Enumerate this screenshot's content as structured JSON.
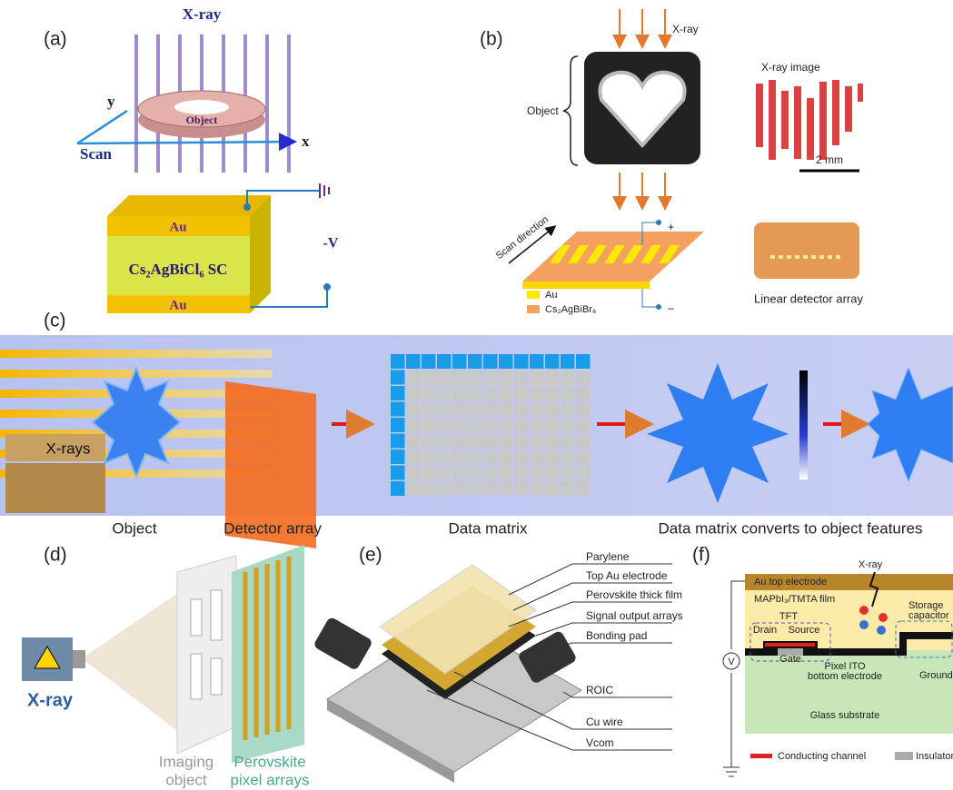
{
  "panels": {
    "a": {
      "label": "(a)",
      "xray": "X-ray",
      "axis_y": "y",
      "object": "Object",
      "scan": "Scan",
      "axis_x": "x",
      "top_electrode": "Au",
      "crystal": "Cs₂AgBiCl₆ SC",
      "bias": "-V",
      "bottom_electrode": "Au"
    },
    "b": {
      "label": "(b)",
      "xray": "X-ray",
      "image_title": "X-ray image",
      "object": "Object",
      "scale": "2 mm",
      "scan_direction": "Scan direction",
      "plus": "+",
      "minus": "–",
      "legend_au": "Au",
      "legend_perovskite": "Cs₂AgBiBr₆",
      "photo_caption": "Linear detector array"
    },
    "c": {
      "label": "(c)",
      "xrays": "X-rays",
      "captions": [
        "Object",
        "Detector array",
        "Data matrix",
        "Data matrix converts to object features"
      ]
    },
    "d": {
      "label": "(d)",
      "source": "X-ray",
      "object_lines": [
        "Imaging",
        "object"
      ],
      "array_lines": [
        "Perovskite",
        "pixel arrays"
      ]
    },
    "e": {
      "label": "(e)",
      "callouts": [
        "Parylene",
        "Top Au electrode",
        "Perovskite thick film",
        "Signal output arrays",
        "Bonding pad",
        "ROIC",
        "Cu wire",
        "Vcom"
      ]
    },
    "f": {
      "label": "(f)",
      "top_electrode": "Au top electrode",
      "xray": "X-ray",
      "film": "MAPbI₃/TMTA film",
      "tft": "TFT",
      "drain": "Drain",
      "source": "Source",
      "gate": "Gate",
      "capacitor_lines": [
        "Storage",
        "capacitor"
      ],
      "pixel_lines": [
        "Pixel ITO",
        "bottom electrode"
      ],
      "ground": "Ground",
      "voltage": "V",
      "substrate": "Glass substrate",
      "legend_channel": "Conducting channel",
      "legend_insulator": "Insulator"
    }
  }
}
